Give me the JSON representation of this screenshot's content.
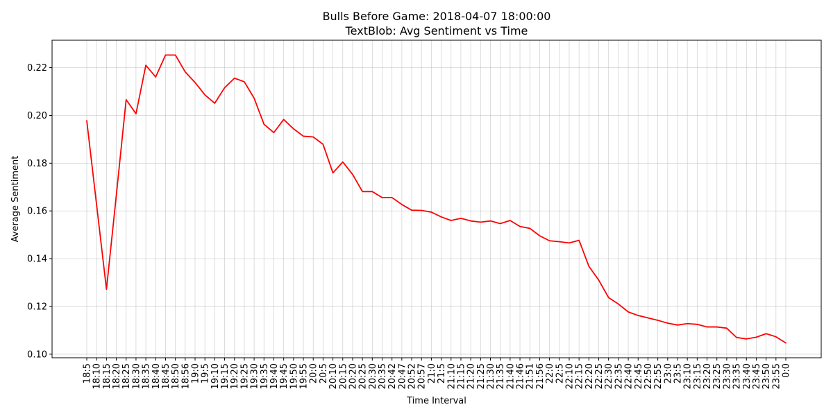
{
  "chart_data": {
    "type": "line",
    "title": "Bulls Before Game: 2018-04-07 18:00:00",
    "subtitle": "TextBlob: Avg Sentiment vs Time",
    "xlabel": "Time Interval",
    "ylabel": "Average Sentiment",
    "ylim": [
      0.0985,
      0.2315
    ],
    "yticks": [
      0.1,
      0.12,
      0.14,
      0.16,
      0.18,
      0.2,
      0.22
    ],
    "grid": true,
    "line_color": "#ff0000",
    "categories": [
      "18:5",
      "18:10",
      "18:15",
      "18:20",
      "18:25",
      "18:30",
      "18:35",
      "18:40",
      "18:45",
      "18:50",
      "18:56",
      "19:0",
      "19:5",
      "19:10",
      "19:15",
      "19:20",
      "19:25",
      "19:30",
      "19:35",
      "19:40",
      "19:45",
      "19:50",
      "19:55",
      "20:0",
      "20:5",
      "20:10",
      "20:15",
      "20:20",
      "20:25",
      "20:30",
      "20:35",
      "20:42",
      "20:47",
      "20:52",
      "20:57",
      "21:0",
      "21:5",
      "21:10",
      "21:15",
      "21:20",
      "21:25",
      "21:30",
      "21:35",
      "21:40",
      "21:46",
      "21:51",
      "21:56",
      "22:0",
      "22:5",
      "22:10",
      "22:15",
      "22:20",
      "22:25",
      "22:30",
      "22:35",
      "22:40",
      "22:45",
      "22:50",
      "22:55",
      "23:0",
      "23:5",
      "23:10",
      "23:15",
      "23:20",
      "23:25",
      "23:30",
      "23:35",
      "23:40",
      "23:45",
      "23:50",
      "23:55",
      "0:0"
    ],
    "series": [
      {
        "values": [
          0.1978,
          0.1625,
          0.1272,
          0.1665,
          0.2066,
          0.2007,
          0.221,
          0.2161,
          0.2253,
          0.2253,
          0.2182,
          0.2138,
          0.2086,
          0.2051,
          0.2116,
          0.2156,
          0.2141,
          0.2072,
          0.1963,
          0.1928,
          0.1983,
          0.1944,
          0.1913,
          0.191,
          0.1879,
          0.1759,
          0.1805,
          0.1753,
          0.1681,
          0.1681,
          0.1656,
          0.1656,
          0.1627,
          0.1603,
          0.1602,
          0.1595,
          0.1575,
          0.156,
          0.1569,
          0.1558,
          0.1553,
          0.1558,
          0.1547,
          0.156,
          0.1535,
          0.1527,
          0.1496,
          0.1475,
          0.1471,
          0.1466,
          0.1477,
          0.1368,
          0.131,
          0.1237,
          0.121,
          0.1177,
          0.1162,
          0.1152,
          0.1142,
          0.113,
          0.1122,
          0.1128,
          0.1125,
          0.1114,
          0.1114,
          0.1109,
          0.107,
          0.1064,
          0.1071,
          0.1086,
          0.1073,
          0.1047
        ]
      }
    ]
  }
}
